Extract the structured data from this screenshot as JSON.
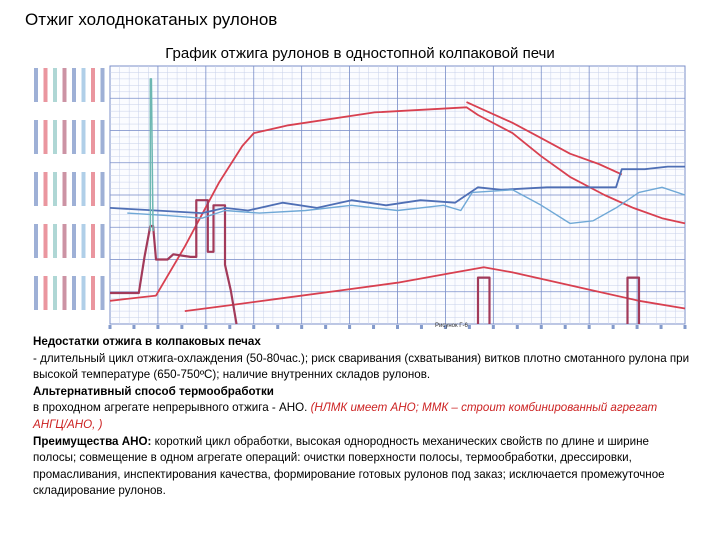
{
  "slide": {
    "title": "Отжиг холоднокатаных рулонов"
  },
  "chart_data": {
    "type": "line",
    "title": "График отжига рулонов в одностопной колпаковой печи",
    "corner_label": "Рисунок Г-6",
    "colors": {
      "grid_major": "#7b8fc9",
      "grid_minor": "#c7d0ea",
      "red": "#d84050",
      "dark_red": "#a23a5a",
      "blue": "#4f6fb5",
      "light_blue": "#6fa8d6",
      "teal": "#6db7b2"
    },
    "series": [
      {
        "color": "red",
        "values": [
          [
            0.0,
            0.91
          ],
          [
            0.08,
            0.89
          ],
          [
            0.13,
            0.7
          ],
          [
            0.19,
            0.45
          ],
          [
            0.23,
            0.31
          ],
          [
            0.25,
            0.26
          ],
          [
            0.31,
            0.23
          ],
          [
            0.46,
            0.18
          ],
          [
            0.62,
            0.16
          ],
          [
            0.64,
            0.19
          ],
          [
            0.7,
            0.26
          ],
          [
            0.75,
            0.35
          ],
          [
            0.8,
            0.43
          ],
          [
            0.86,
            0.5
          ],
          [
            0.91,
            0.55
          ],
          [
            0.96,
            0.59
          ],
          [
            1.0,
            0.61
          ]
        ]
      },
      {
        "color": "red",
        "values": [
          [
            0.62,
            0.14
          ],
          [
            0.65,
            0.17
          ],
          [
            0.7,
            0.22
          ],
          [
            0.75,
            0.28
          ],
          [
            0.8,
            0.34
          ],
          [
            0.85,
            0.38
          ],
          [
            0.89,
            0.42
          ]
        ]
      },
      {
        "color": "red",
        "values": [
          [
            0.13,
            0.95
          ],
          [
            0.2,
            0.93
          ],
          [
            0.3,
            0.9
          ],
          [
            0.4,
            0.87
          ],
          [
            0.5,
            0.84
          ],
          [
            0.6,
            0.8
          ],
          [
            0.65,
            0.78
          ],
          [
            0.7,
            0.8
          ],
          [
            0.76,
            0.83
          ],
          [
            0.84,
            0.87
          ],
          [
            0.92,
            0.91
          ],
          [
            1.0,
            0.94
          ]
        ]
      },
      {
        "color": "dark_red",
        "values": [
          [
            0.0,
            0.88
          ],
          [
            0.05,
            0.88
          ],
          [
            0.06,
            0.74
          ],
          [
            0.07,
            0.62
          ],
          [
            0.075,
            0.62
          ],
          [
            0.08,
            0.75
          ],
          [
            0.1,
            0.75
          ],
          [
            0.11,
            0.73
          ],
          [
            0.14,
            0.74
          ],
          [
            0.15,
            0.74
          ],
          [
            0.15,
            0.52
          ],
          [
            0.17,
            0.52
          ],
          [
            0.17,
            0.72
          ],
          [
            0.18,
            0.72
          ],
          [
            0.18,
            0.54
          ],
          [
            0.2,
            0.54
          ],
          [
            0.2,
            0.77
          ],
          [
            0.21,
            0.87
          ],
          [
            0.22,
            1.0
          ]
        ]
      },
      {
        "color": "dark_red",
        "values": [
          [
            0.64,
            1.0
          ],
          [
            0.64,
            0.82
          ],
          [
            0.66,
            0.82
          ],
          [
            0.66,
            1.0
          ]
        ]
      },
      {
        "color": "dark_red",
        "values": [
          [
            0.9,
            1.0
          ],
          [
            0.9,
            0.82
          ],
          [
            0.92,
            0.82
          ],
          [
            0.92,
            1.0
          ]
        ]
      },
      {
        "color": "blue",
        "values": [
          [
            0.0,
            0.55
          ],
          [
            0.08,
            0.56
          ],
          [
            0.16,
            0.57
          ],
          [
            0.2,
            0.55
          ],
          [
            0.24,
            0.56
          ],
          [
            0.3,
            0.53
          ],
          [
            0.36,
            0.55
          ],
          [
            0.42,
            0.52
          ],
          [
            0.48,
            0.54
          ],
          [
            0.54,
            0.52
          ],
          [
            0.6,
            0.53
          ],
          [
            0.62,
            0.5
          ],
          [
            0.64,
            0.47
          ],
          [
            0.68,
            0.48
          ],
          [
            0.76,
            0.47
          ],
          [
            0.84,
            0.47
          ],
          [
            0.88,
            0.47
          ],
          [
            0.89,
            0.4
          ],
          [
            0.93,
            0.4
          ],
          [
            0.97,
            0.39
          ],
          [
            1.0,
            0.39
          ]
        ]
      },
      {
        "color": "light_blue",
        "values": [
          [
            0.03,
            0.57
          ],
          [
            0.1,
            0.58
          ],
          [
            0.16,
            0.59
          ],
          [
            0.2,
            0.56
          ],
          [
            0.26,
            0.57
          ],
          [
            0.34,
            0.56
          ],
          [
            0.42,
            0.54
          ],
          [
            0.5,
            0.56
          ],
          [
            0.58,
            0.54
          ],
          [
            0.61,
            0.56
          ],
          [
            0.63,
            0.49
          ],
          [
            0.7,
            0.48
          ],
          [
            0.75,
            0.54
          ],
          [
            0.8,
            0.61
          ],
          [
            0.84,
            0.6
          ],
          [
            0.88,
            0.55
          ],
          [
            0.92,
            0.49
          ],
          [
            0.96,
            0.47
          ],
          [
            1.0,
            0.5
          ]
        ]
      },
      {
        "color": "teal",
        "values": [
          [
            0.07,
            0.64
          ],
          [
            0.07,
            0.05
          ],
          [
            0.072,
            0.05
          ],
          [
            0.074,
            0.46
          ],
          [
            0.075,
            0.64
          ]
        ]
      }
    ]
  },
  "text": {
    "heading1": "Недостатки отжига в колпаковых печах",
    "line1": "-   длительный цикл отжига-охлаждения (50-80час.); риск сваривания (схватывания) витков плотно смотанного рулона при высокой температуре (650-750ºС); наличие внутренних складов рулонов.",
    "heading2": "Альтернативный способ термообработки",
    "line2_normal": "в проходном агрегате непрерывного отжига - АНО. ",
    "line2_red": "(НЛМК имеет АНО; ММК – строит комбинированный агрегат АНГЦ/АНО, )",
    "heading3": "Преимущества АНО:",
    "line3": " короткий цикл обработки, высокая однородность механических свойств по длине и ширине полосы; совмещение в одном агрегате операций: очистки поверхности полосы, термообработки, дрессировки, промасливания, инспектирования качества, формирование готовых рулонов под заказ; исключается промежуточное складирование рулонов."
  }
}
